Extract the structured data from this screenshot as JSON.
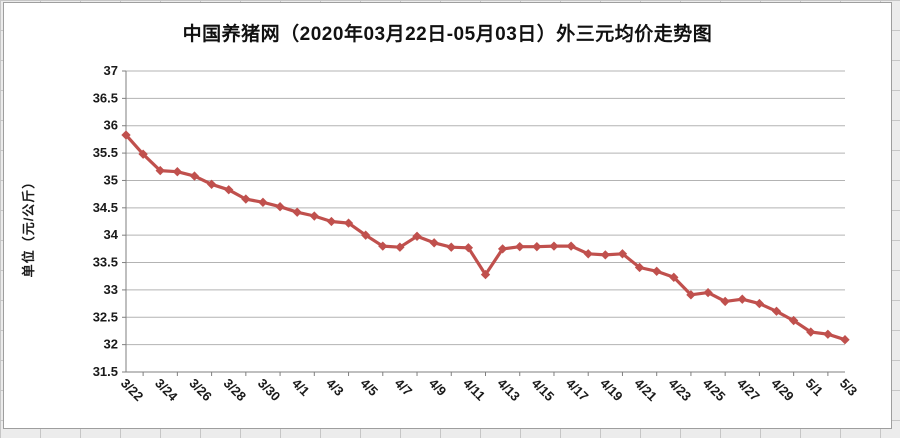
{
  "title": "中国养猪网（2020年03月22日-05月03日）外三元均价走势图",
  "y_axis_title": "单位（元/公斤）",
  "colors": {
    "series": "#c0504d",
    "gridline": "#b3b3b3",
    "axis": "#7f7f7f",
    "text": "#1a1a1a",
    "chart_background": "#ffffff",
    "sheet_background": "#ececec"
  },
  "chart_data": {
    "type": "line",
    "title": "中国养猪网（2020年03月22日-05月03日）外三元均价走势图",
    "xlabel": "",
    "ylabel": "单位（元/公斤）",
    "x": [
      "3/22",
      "3/23",
      "3/24",
      "3/25",
      "3/26",
      "3/27",
      "3/28",
      "3/29",
      "3/30",
      "3/31",
      "4/1",
      "4/2",
      "4/3",
      "4/4",
      "4/5",
      "4/6",
      "4/7",
      "4/8",
      "4/9",
      "4/10",
      "4/11",
      "4/12",
      "4/13",
      "4/14",
      "4/15",
      "4/16",
      "4/17",
      "4/18",
      "4/19",
      "4/20",
      "4/21",
      "4/22",
      "4/23",
      "4/24",
      "4/25",
      "4/26",
      "4/27",
      "4/28",
      "4/29",
      "4/30",
      "5/1",
      "5/2",
      "5/3"
    ],
    "values": [
      35.83,
      35.48,
      35.18,
      35.16,
      35.08,
      34.93,
      34.83,
      34.66,
      34.6,
      34.52,
      34.42,
      34.35,
      34.25,
      34.22,
      34.0,
      33.8,
      33.78,
      33.98,
      33.86,
      33.78,
      33.77,
      33.28,
      33.75,
      33.79,
      33.79,
      33.8,
      33.8,
      33.66,
      33.64,
      33.66,
      33.41,
      33.34,
      33.23,
      32.91,
      32.95,
      32.79,
      32.83,
      32.75,
      32.61,
      32.44,
      32.23,
      32.19,
      32.09
    ],
    "x_label_every": 2,
    "x_axis_visible_labels": [
      "3/22",
      "3/24",
      "3/26",
      "3/28",
      "3/30",
      "4/1",
      "4/3",
      "4/5",
      "4/7",
      "4/9",
      "4/11",
      "4/13",
      "4/15",
      "4/17",
      "4/19",
      "4/21",
      "4/23",
      "4/25",
      "4/27",
      "4/29",
      "5/1",
      "5/3"
    ],
    "y_tick_labels": [
      "31.5",
      "32",
      "32.5",
      "33",
      "33.5",
      "34",
      "34.5",
      "35",
      "35.5",
      "36",
      "36.5",
      "37"
    ],
    "ylim": [
      31.5,
      37
    ],
    "y_tick_step": 0.5,
    "grid": true,
    "legend_position": "none",
    "marker": "diamond"
  }
}
